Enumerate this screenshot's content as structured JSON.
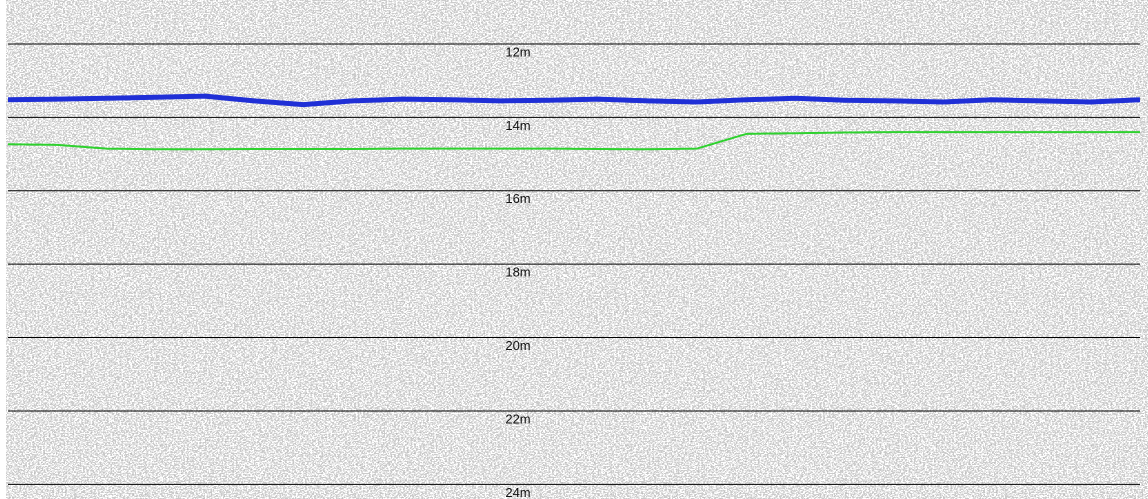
{
  "chart_data": {
    "type": "line",
    "ylim": [
      24.4,
      10.8
    ],
    "yticks": [
      {
        "value": 12,
        "label": "12m"
      },
      {
        "value": 14,
        "label": "14m"
      },
      {
        "value": 16,
        "label": "16m"
      },
      {
        "value": 18,
        "label": "18m"
      },
      {
        "value": 20,
        "label": "20m"
      },
      {
        "value": 22,
        "label": "22m"
      },
      {
        "value": 24,
        "label": "24m"
      }
    ],
    "grid": true,
    "series": [
      {
        "color": "#1f2fd6",
        "values": [
          13.52,
          13.5,
          13.48,
          13.45,
          13.42,
          13.55,
          13.65,
          13.55,
          13.5,
          13.52,
          13.55,
          13.53,
          13.5,
          13.55,
          13.58,
          13.52,
          13.48,
          13.53,
          13.55,
          13.58,
          13.52,
          13.55,
          13.58,
          13.52
        ]
      },
      {
        "color": "#2ed12e",
        "values": [
          14.73,
          14.75,
          14.85,
          14.87,
          14.87,
          14.86,
          14.86,
          14.86,
          14.85,
          14.85,
          14.85,
          14.85,
          14.86,
          14.87,
          14.85,
          14.45,
          14.43,
          14.41,
          14.4,
          14.4,
          14.4,
          14.4,
          14.4,
          14.4
        ]
      }
    ]
  }
}
